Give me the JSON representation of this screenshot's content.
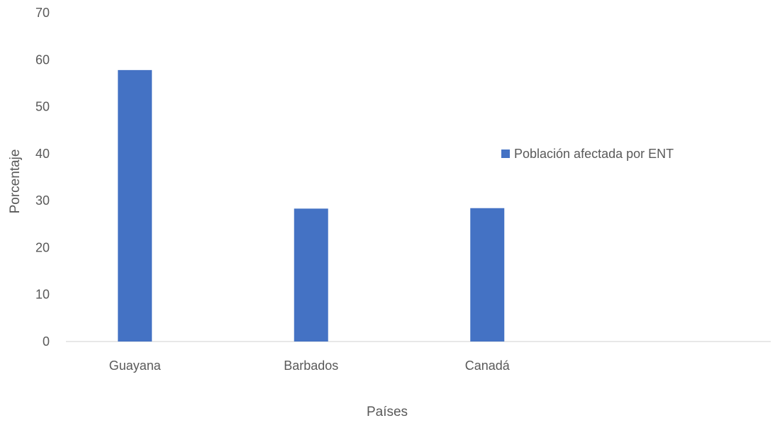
{
  "chart_data": {
    "type": "bar",
    "title": "",
    "xlabel": "Países",
    "ylabel": "Porcentaje",
    "categories": [
      "Guayana",
      "Barbados",
      "Canadá"
    ],
    "series": [
      {
        "name": "Población afectada por ENT",
        "values": [
          57.8,
          28.3,
          28.4
        ]
      }
    ],
    "ylim": [
      0,
      70
    ],
    "yticks": [
      "0",
      "10",
      "20",
      "30",
      "40",
      "50",
      "60",
      "70"
    ],
    "slots": 4,
    "grid": false,
    "legend_position": "right",
    "bar_color": "#4472C4",
    "axis_color": "#D9D9D9",
    "text_color": "#595959"
  }
}
